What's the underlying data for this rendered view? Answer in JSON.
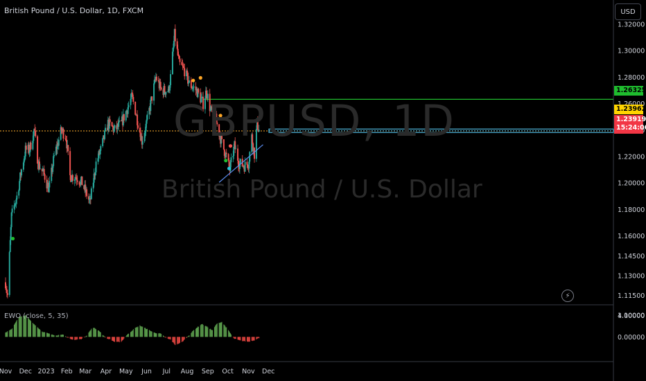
{
  "header": {
    "symbol_title": "British Pound / U.S. Dollar, 1D, FXCM",
    "currency_button": "USD"
  },
  "watermark": {
    "ticker": "GBPUSD, 1D",
    "name": "British Pound / U.S. Dollar"
  },
  "indicator": {
    "label": "EWO (close, 5, 35)",
    "positive_color": "#5b9e4d",
    "negative_color": "#e0443f",
    "ticks": [
      "4.00000",
      "0.00000"
    ]
  },
  "price_tags": {
    "resistance": {
      "label": "1.26325",
      "color": "#1fbd2e"
    },
    "previous": {
      "label": "1.23962",
      "color": "#ffd400"
    },
    "current": {
      "label": "1.23919",
      "countdown": "15:24:06",
      "color": "#f23645"
    }
  },
  "colors": {
    "up_candle": "#26a69a",
    "down_candle": "#ef5350",
    "resistance_line": "#1fbd2e",
    "support_line": "#4fb7dd",
    "prev_close_line": "#ffb02e",
    "trendline": "#5b8def"
  },
  "chart_data": {
    "type": "candlestick",
    "title": "British Pound / U.S. Dollar, 1D, FXCM",
    "y_ticks": [
      "1.32000",
      "1.30000",
      "1.28000",
      "1.26000",
      "1.24000",
      "1.22000",
      "1.20000",
      "1.18000",
      "1.16000",
      "1.14500",
      "1.13000",
      "1.11500",
      "1.10000"
    ],
    "x_ticks": [
      "Nov",
      "Dec",
      "2023",
      "Feb",
      "Mar",
      "Apr",
      "May",
      "Jun",
      "Jul",
      "Aug",
      "Sep",
      "Oct",
      "Nov",
      "Dec"
    ],
    "ylim": [
      1.097,
      1.325
    ],
    "levels": {
      "resistance": 1.26325,
      "support": 1.2395,
      "last": 1.23919,
      "prev": 1.23962
    },
    "close_path": [
      [
        "2022-11-01",
        1.125
      ],
      [
        "2022-11-04",
        1.115
      ],
      [
        "2022-11-10",
        1.175
      ],
      [
        "2022-11-18",
        1.19
      ],
      [
        "2022-11-25",
        1.21
      ],
      [
        "2022-12-01",
        1.225
      ],
      [
        "2022-12-07",
        1.225
      ],
      [
        "2022-12-14",
        1.24
      ],
      [
        "2022-12-20",
        1.215
      ],
      [
        "2022-12-30",
        1.205
      ],
      [
        "2023-01-05",
        1.195
      ],
      [
        "2023-01-13",
        1.22
      ],
      [
        "2023-01-24",
        1.24
      ],
      [
        "2023-01-31",
        1.235
      ],
      [
        "2023-02-06",
        1.205
      ],
      [
        "2023-02-15",
        1.205
      ],
      [
        "2023-02-24",
        1.2
      ],
      [
        "2023-03-08",
        1.185
      ],
      [
        "2023-03-17",
        1.215
      ],
      [
        "2023-03-24",
        1.225
      ],
      [
        "2023-04-04",
        1.245
      ],
      [
        "2023-04-14",
        1.24
      ],
      [
        "2023-04-24",
        1.245
      ],
      [
        "2023-05-10",
        1.265
      ],
      [
        "2023-05-15",
        1.255
      ],
      [
        "2023-05-25",
        1.232
      ],
      [
        "2023-06-01",
        1.245
      ],
      [
        "2023-06-15",
        1.28
      ],
      [
        "2023-06-23",
        1.27
      ],
      [
        "2023-07-04",
        1.27
      ],
      [
        "2023-07-07",
        1.28
      ],
      [
        "2023-07-13",
        1.312
      ],
      [
        "2023-07-20",
        1.29
      ],
      [
        "2023-07-28",
        1.285
      ],
      [
        "2023-08-04",
        1.275
      ],
      [
        "2023-08-15",
        1.27
      ],
      [
        "2023-08-25",
        1.26
      ],
      [
        "2023-08-30",
        1.27
      ],
      [
        "2023-09-05",
        1.255
      ],
      [
        "2023-09-12",
        1.25
      ],
      [
        "2023-09-22",
        1.23
      ],
      [
        "2023-09-29",
        1.22
      ],
      [
        "2023-10-04",
        1.21
      ],
      [
        "2023-10-11",
        1.228
      ],
      [
        "2023-10-18",
        1.215
      ],
      [
        "2023-10-26",
        1.213
      ],
      [
        "2023-11-01",
        1.215
      ],
      [
        "2023-11-06",
        1.235
      ],
      [
        "2023-11-10",
        1.222
      ],
      [
        "2023-11-14",
        1.245
      ],
      [
        "2023-11-17",
        1.24
      ]
    ],
    "signals": [
      {
        "date": "2022-11-12",
        "price": 1.158,
        "color": "#1fbd2e"
      },
      {
        "date": "2023-08-10",
        "price": 1.2775,
        "color": "#ffa726"
      },
      {
        "date": "2023-08-21",
        "price": 1.2795,
        "color": "#ffa726"
      },
      {
        "date": "2023-09-20",
        "price": 1.251,
        "color": "#ffa726"
      },
      {
        "date": "2023-09-28",
        "price": 1.217,
        "color": "#1fbd2e"
      },
      {
        "date": "2023-10-05",
        "price": 1.228,
        "color": "#ef5350"
      },
      {
        "date": "2023-10-03",
        "price": 1.211,
        "color": "#26c6da"
      }
    ],
    "trendline": [
      [
        "2023-09-18",
        1.2005
      ],
      [
        "2023-11-23",
        1.229
      ]
    ],
    "ewo_range": [
      -4.6,
      5.2
    ],
    "ewo_path": [
      [
        "2022-11-01",
        0.8
      ],
      [
        "2022-11-10",
        1.4
      ],
      [
        "2022-11-20",
        3.6
      ],
      [
        "2022-12-01",
        4.0
      ],
      [
        "2022-12-12",
        2.6
      ],
      [
        "2022-12-26",
        1.0
      ],
      [
        "2023-01-10",
        0.4
      ],
      [
        "2023-01-18",
        0.3
      ],
      [
        "2023-01-25",
        0.5
      ],
      [
        "2023-02-01",
        -0.1
      ],
      [
        "2023-02-12",
        -0.6
      ],
      [
        "2023-02-25",
        -0.3
      ],
      [
        "2023-03-03",
        0.3
      ],
      [
        "2023-03-12",
        1.8
      ],
      [
        "2023-03-22",
        1.1
      ],
      [
        "2023-04-01",
        -0.3
      ],
      [
        "2023-04-06",
        -0.4
      ],
      [
        "2023-04-15",
        -1.0
      ],
      [
        "2023-04-24",
        -0.9
      ],
      [
        "2023-05-02",
        0.3
      ],
      [
        "2023-05-14",
        1.6
      ],
      [
        "2023-05-22",
        2.1
      ],
      [
        "2023-06-01",
        1.5
      ],
      [
        "2023-06-12",
        0.8
      ],
      [
        "2023-06-22",
        0.6
      ],
      [
        "2023-07-01",
        -0.3
      ],
      [
        "2023-07-07",
        -0.5
      ],
      [
        "2023-07-14",
        -1.5
      ],
      [
        "2023-07-24",
        -1.0
      ],
      [
        "2023-08-02",
        0.1
      ],
      [
        "2023-08-12",
        1.4
      ],
      [
        "2023-08-23",
        2.4
      ],
      [
        "2023-09-01",
        1.8
      ],
      [
        "2023-09-08",
        1.2
      ],
      [
        "2023-09-14",
        2.4
      ],
      [
        "2023-09-22",
        2.8
      ],
      [
        "2023-10-01",
        1.4
      ],
      [
        "2023-10-10",
        -0.3
      ],
      [
        "2023-10-20",
        -0.7
      ],
      [
        "2023-11-01",
        -0.9
      ],
      [
        "2023-11-10",
        -0.6
      ],
      [
        "2023-11-17",
        -0.2
      ]
    ]
  }
}
